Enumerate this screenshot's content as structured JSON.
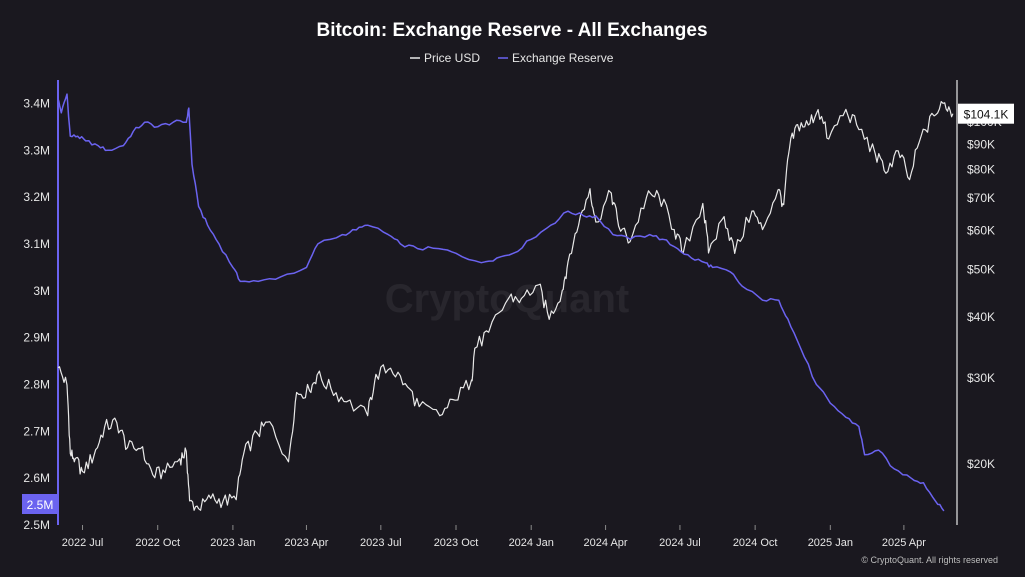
{
  "colors": {
    "background": "#1a181f",
    "price": "#e8e8e8",
    "reserve": "#6b63f0",
    "axis_left": "#6b63f0",
    "axis_right": "#e8e8e8"
  },
  "footer": {
    "watermark": "CryptoQuant",
    "copyright": "© CryptoQuant. All rights reserved"
  },
  "chart_data": {
    "type": "line",
    "title": "Bitcoin: Exchange Reserve - All Exchanges",
    "legend_position": "top-center",
    "grid": false,
    "series": [
      {
        "name": "Price USD",
        "axis": "right",
        "color": "#e8e8e8",
        "scale": "log",
        "points": [
          [
            "2022-06-01",
            31500
          ],
          [
            "2022-06-12",
            29000
          ],
          [
            "2022-06-16",
            21000
          ],
          [
            "2022-06-22",
            20500
          ],
          [
            "2022-07-01",
            19300
          ],
          [
            "2022-07-15",
            20800
          ],
          [
            "2022-07-28",
            23800
          ],
          [
            "2022-08-12",
            24300
          ],
          [
            "2022-08-25",
            21600
          ],
          [
            "2022-09-10",
            21500
          ],
          [
            "2022-09-25",
            19000
          ],
          [
            "2022-10-10",
            19200
          ],
          [
            "2022-10-28",
            20500
          ],
          [
            "2022-11-05",
            21200
          ],
          [
            "2022-11-09",
            16800
          ],
          [
            "2022-11-20",
            16200
          ],
          [
            "2022-12-05",
            17000
          ],
          [
            "2022-12-20",
            16800
          ],
          [
            "2023-01-05",
            16900
          ],
          [
            "2023-01-14",
            20900
          ],
          [
            "2023-01-31",
            23100
          ],
          [
            "2023-02-15",
            24400
          ],
          [
            "2023-03-10",
            20200
          ],
          [
            "2023-03-20",
            28000
          ],
          [
            "2023-04-05",
            28200
          ],
          [
            "2023-04-14",
            30400
          ],
          [
            "2023-05-01",
            28500
          ],
          [
            "2023-05-20",
            26800
          ],
          [
            "2023-06-15",
            25100
          ],
          [
            "2023-06-25",
            30500
          ],
          [
            "2023-07-13",
            31400
          ],
          [
            "2023-07-31",
            29200
          ],
          [
            "2023-08-17",
            26200
          ],
          [
            "2023-09-11",
            25100
          ],
          [
            "2023-09-30",
            27000
          ],
          [
            "2023-10-20",
            29700
          ],
          [
            "2023-10-24",
            34500
          ],
          [
            "2023-11-10",
            37200
          ],
          [
            "2023-12-05",
            43800
          ],
          [
            "2023-12-20",
            43600
          ],
          [
            "2024-01-10",
            46500
          ],
          [
            "2024-01-23",
            39500
          ],
          [
            "2024-02-08",
            45300
          ],
          [
            "2024-02-15",
            51800
          ],
          [
            "2024-02-28",
            61600
          ],
          [
            "2024-03-13",
            73100
          ],
          [
            "2024-03-20",
            62500
          ],
          [
            "2024-04-08",
            71600
          ],
          [
            "2024-04-17",
            61300
          ],
          [
            "2024-05-01",
            57000
          ],
          [
            "2024-05-21",
            70100
          ],
          [
            "2024-06-05",
            71000
          ],
          [
            "2024-06-24",
            60300
          ],
          [
            "2024-07-05",
            54000
          ],
          [
            "2024-07-29",
            68200
          ],
          [
            "2024-08-05",
            54000
          ],
          [
            "2024-08-24",
            64100
          ],
          [
            "2024-09-06",
            53900
          ],
          [
            "2024-09-27",
            65800
          ],
          [
            "2024-10-10",
            60300
          ],
          [
            "2024-10-29",
            72700
          ],
          [
            "2024-11-05",
            67800
          ],
          [
            "2024-11-12",
            88500
          ],
          [
            "2024-11-22",
            98900
          ],
          [
            "2024-12-05",
            98700
          ],
          [
            "2024-12-17",
            106100
          ],
          [
            "2024-12-30",
            92400
          ],
          [
            "2025-01-20",
            106200
          ],
          [
            "2025-02-05",
            96600
          ],
          [
            "2025-02-25",
            86100
          ],
          [
            "2025-03-10",
            78600
          ],
          [
            "2025-03-25",
            87400
          ],
          [
            "2025-04-08",
            76300
          ],
          [
            "2025-04-22",
            93500
          ],
          [
            "2025-05-08",
            103000
          ],
          [
            "2025-05-21",
            109600
          ],
          [
            "2025-05-31",
            104100
          ]
        ]
      },
      {
        "name": "Exchange Reserve",
        "axis": "left",
        "color": "#6b63f0",
        "points": [
          [
            "2022-06-01",
            3.41
          ],
          [
            "2022-06-05",
            3.38
          ],
          [
            "2022-06-12",
            3.42
          ],
          [
            "2022-06-16",
            3.33
          ],
          [
            "2022-06-25",
            3.33
          ],
          [
            "2022-07-05",
            3.32
          ],
          [
            "2022-07-20",
            3.31
          ],
          [
            "2022-08-01",
            3.3
          ],
          [
            "2022-08-20",
            3.31
          ],
          [
            "2022-09-01",
            3.34
          ],
          [
            "2022-09-15",
            3.36
          ],
          [
            "2022-10-01",
            3.35
          ],
          [
            "2022-10-20",
            3.36
          ],
          [
            "2022-11-05",
            3.36
          ],
          [
            "2022-11-08",
            3.39
          ],
          [
            "2022-11-12",
            3.27
          ],
          [
            "2022-11-20",
            3.18
          ],
          [
            "2022-12-01",
            3.14
          ],
          [
            "2022-12-15",
            3.1
          ],
          [
            "2023-01-01",
            3.05
          ],
          [
            "2023-01-10",
            3.02
          ],
          [
            "2023-02-01",
            3.02
          ],
          [
            "2023-03-01",
            3.03
          ],
          [
            "2023-04-01",
            3.05
          ],
          [
            "2023-04-15",
            3.1
          ],
          [
            "2023-05-15",
            3.12
          ],
          [
            "2023-06-01",
            3.13
          ],
          [
            "2023-06-15",
            3.14
          ],
          [
            "2023-07-10",
            3.12
          ],
          [
            "2023-07-25",
            3.1
          ],
          [
            "2023-08-15",
            3.09
          ],
          [
            "2023-09-10",
            3.09
          ],
          [
            "2023-10-01",
            3.08
          ],
          [
            "2023-11-01",
            3.06
          ],
          [
            "2023-11-20",
            3.07
          ],
          [
            "2023-12-10",
            3.08
          ],
          [
            "2024-01-01",
            3.11
          ],
          [
            "2024-01-25",
            3.14
          ],
          [
            "2024-02-15",
            3.17
          ],
          [
            "2024-03-05",
            3.16
          ],
          [
            "2024-03-20",
            3.16
          ],
          [
            "2024-04-10",
            3.12
          ],
          [
            "2024-05-01",
            3.11
          ],
          [
            "2024-05-25",
            3.12
          ],
          [
            "2024-06-10",
            3.11
          ],
          [
            "2024-06-28",
            3.09
          ],
          [
            "2024-07-15",
            3.07
          ],
          [
            "2024-08-01",
            3.06
          ],
          [
            "2024-08-10",
            3.05
          ],
          [
            "2024-09-01",
            3.04
          ],
          [
            "2024-09-15",
            3.01
          ],
          [
            "2024-10-10",
            2.98
          ],
          [
            "2024-10-30",
            2.98
          ],
          [
            "2024-11-10",
            2.94
          ],
          [
            "2024-11-25",
            2.88
          ],
          [
            "2024-12-15",
            2.8
          ],
          [
            "2025-01-01",
            2.76
          ],
          [
            "2025-01-20",
            2.73
          ],
          [
            "2025-02-05",
            2.71
          ],
          [
            "2025-02-12",
            2.65
          ],
          [
            "2025-03-01",
            2.66
          ],
          [
            "2025-03-20",
            2.62
          ],
          [
            "2025-04-10",
            2.6
          ],
          [
            "2025-04-25",
            2.59
          ],
          [
            "2025-05-10",
            2.55
          ],
          [
            "2025-05-20",
            2.53
          ]
        ]
      }
    ],
    "x_range": [
      "2022-06-01",
      "2025-06-05"
    ],
    "x_ticks": [
      "2022 Jul",
      "2022 Oct",
      "2023 Jan",
      "2023 Apr",
      "2023 Jul",
      "2023 Oct",
      "2024 Jan",
      "2024 Apr",
      "2024 Jul",
      "2024 Oct",
      "2025 Jan",
      "2025 Apr"
    ],
    "left_axis": {
      "range": [
        2.5,
        3.45
      ],
      "tick_values": [
        2.5,
        2.6,
        2.7,
        2.8,
        2.9,
        3.0,
        3.1,
        3.2,
        3.3,
        3.4
      ],
      "tick_labels": [
        "2.5M",
        "2.6M",
        "2.7M",
        "2.8M",
        "2.9M",
        "3M",
        "3.1M",
        "3.2M",
        "3.3M",
        "3.4M"
      ]
    },
    "right_axis": {
      "scale": "log",
      "range": [
        15000,
        122000
      ],
      "tick_values": [
        20000,
        30000,
        40000,
        50000,
        60000,
        70000,
        80000,
        90000,
        100000
      ],
      "tick_labels": [
        "$20K",
        "$30K",
        "$40K",
        "$50K",
        "$60K",
        "$70K",
        "$80K",
        "$90K",
        "$100K"
      ]
    },
    "current_values": {
      "price_badge": "$104.1K",
      "price_badge_value": 104100,
      "reserve_badge": "2.5M",
      "reserve_badge_value": 2.5
    }
  }
}
